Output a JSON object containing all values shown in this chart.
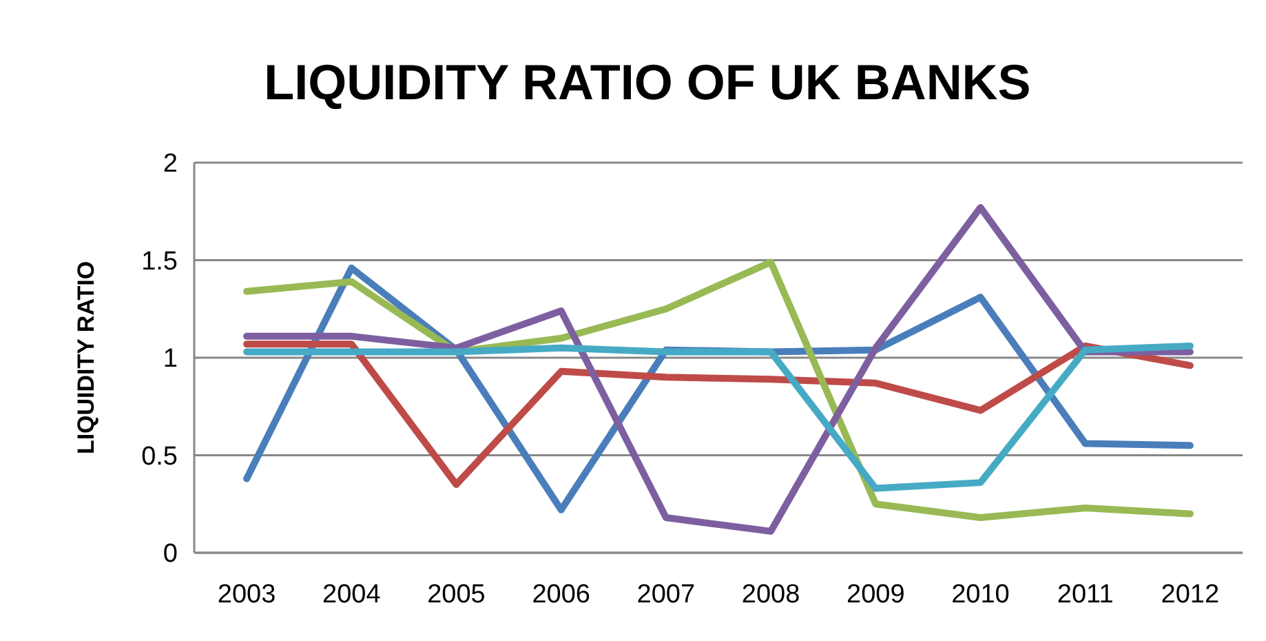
{
  "chart_data": {
    "type": "line",
    "title": "LIQUIDITY RATIO OF UK BANKS",
    "ylabel": "LIQUIDITY RATIO",
    "categories": [
      "2003",
      "2004",
      "2005",
      "2006",
      "2007",
      "2008",
      "2009",
      "2010",
      "2011",
      "2012"
    ],
    "series": [
      {
        "color": "#4a7ebb",
        "values": [
          0.38,
          1.46,
          1.04,
          0.22,
          1.04,
          1.03,
          1.04,
          1.31,
          0.56,
          0.55
        ]
      },
      {
        "color": "#be4b48",
        "values": [
          1.07,
          1.07,
          0.35,
          0.93,
          0.9,
          0.89,
          0.87,
          0.73,
          1.06,
          0.96
        ]
      },
      {
        "color": "#98b954",
        "values": [
          1.34,
          1.39,
          1.03,
          1.1,
          1.25,
          1.49,
          0.25,
          0.18,
          0.23,
          0.2
        ]
      },
      {
        "color": "#7d5fa0",
        "values": [
          1.11,
          1.11,
          1.05,
          1.24,
          0.18,
          0.11,
          1.05,
          1.77,
          1.03,
          1.03
        ]
      },
      {
        "color": "#46aac5",
        "values": [
          1.03,
          1.03,
          1.03,
          1.05,
          1.03,
          1.03,
          0.33,
          0.36,
          1.04,
          1.06
        ]
      }
    ],
    "ylim": [
      0,
      2
    ],
    "yticks": [
      0,
      0.5,
      1,
      1.5,
      2
    ],
    "grid": "y",
    "marker": "none",
    "line_style": "solid"
  }
}
